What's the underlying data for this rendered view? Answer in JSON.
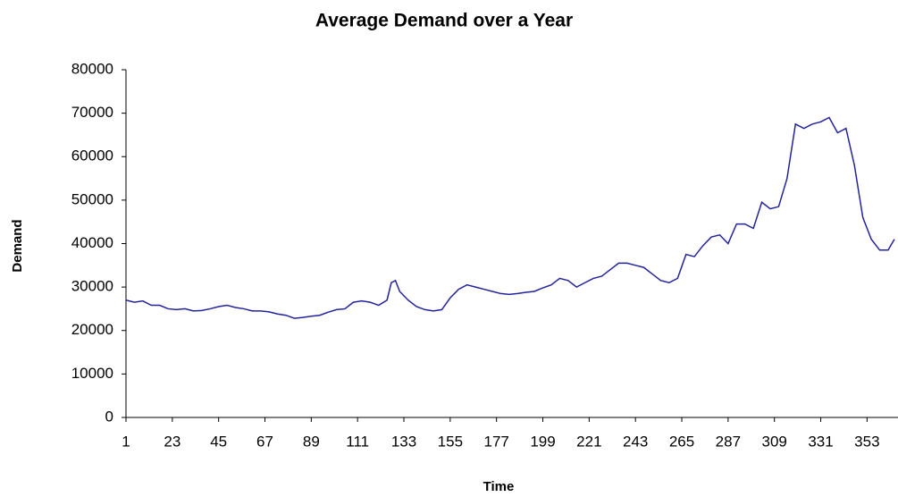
{
  "chart_data": {
    "type": "line",
    "title": "Average Demand over a Year",
    "xlabel": "Time",
    "ylabel": "Demand",
    "x": [
      1,
      5,
      9,
      13,
      17,
      21,
      25,
      29,
      33,
      37,
      41,
      45,
      49,
      53,
      57,
      61,
      65,
      69,
      73,
      77,
      81,
      85,
      89,
      93,
      97,
      101,
      105,
      109,
      113,
      117,
      121,
      125,
      127,
      129,
      131,
      135,
      139,
      143,
      147,
      151,
      155,
      159,
      163,
      167,
      171,
      175,
      179,
      183,
      187,
      191,
      195,
      199,
      203,
      207,
      211,
      215,
      219,
      223,
      227,
      231,
      235,
      239,
      243,
      247,
      251,
      255,
      259,
      263,
      267,
      271,
      275,
      279,
      283,
      287,
      291,
      295,
      299,
      303,
      307,
      311,
      315,
      319,
      323,
      327,
      331,
      335,
      339,
      343,
      347,
      351,
      355,
      359,
      363,
      366
    ],
    "series": [
      {
        "name": "Demand",
        "color": "#23239a",
        "values": [
          27000,
          26500,
          26800,
          25800,
          25800,
          25000,
          24800,
          25000,
          24500,
          24600,
          25000,
          25500,
          25800,
          25300,
          25000,
          24500,
          24500,
          24300,
          23800,
          23500,
          22800,
          23000,
          23300,
          23500,
          24200,
          24800,
          25000,
          26500,
          26800,
          26500,
          25800,
          27000,
          31000,
          31500,
          29000,
          27000,
          25500,
          24800,
          24500,
          24800,
          27500,
          29500,
          30500,
          30000,
          29500,
          29000,
          28500,
          28300,
          28500,
          28800,
          29000,
          29800,
          30500,
          32000,
          31500,
          30000,
          31000,
          32000,
          32500,
          34000,
          35500,
          35500,
          35000,
          34500,
          33000,
          31500,
          31000,
          32000,
          37500,
          37000,
          39500,
          41500,
          42000,
          40000,
          44500,
          44500,
          43500,
          49500,
          48000,
          48500,
          55000,
          67500,
          66500,
          67500,
          68000,
          69000,
          65500,
          66500,
          58000,
          46000,
          41000,
          38500,
          38500,
          41000
        ]
      }
    ],
    "xlim": [
      1,
      366
    ],
    "xticks": [
      1,
      23,
      45,
      67,
      89,
      111,
      133,
      155,
      177,
      199,
      221,
      243,
      265,
      287,
      309,
      331,
      353
    ],
    "ylim": [
      0,
      80000
    ],
    "yticks": [
      0,
      10000,
      20000,
      30000,
      40000,
      50000,
      60000,
      70000,
      80000
    ],
    "grid": false
  }
}
